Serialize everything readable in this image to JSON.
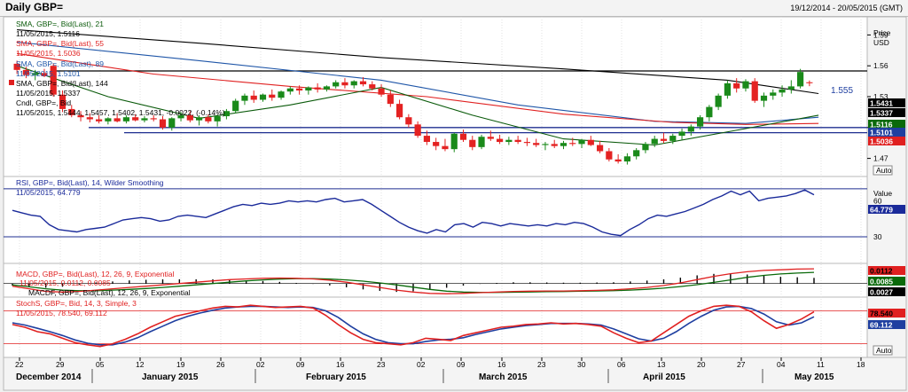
{
  "header": {
    "title": "Daily GBP=",
    "date_range": "19/12/2014 - 20/05/2015 (GMT)"
  },
  "price_panel": {
    "axis_title": [
      "Price",
      "USD"
    ],
    "ticks": [
      "1.59",
      "1.56",
      "1.53",
      "1.5",
      "1.47"
    ],
    "auto_label": "Auto",
    "level_label": "1.555",
    "legend": [
      {
        "label": "SMA, GBP=, Bid(Last), 21",
        "value": "11/05/2015, 1.5116",
        "color": "#0a5a0a"
      },
      {
        "label": "SMA, GBP=, Bid(Last), 55",
        "value": "11/05/2015, 1.5036",
        "color": "#e02020"
      },
      {
        "label": "SMA, GBP=, Bid(Last), 89",
        "value": "11/05/2015, 1.5101",
        "color": "#1f56a8"
      },
      {
        "label": "SMA, GBP=, Bid(Last), 144",
        "value": "11/05/2015, 1.5337",
        "color": "#000000"
      },
      {
        "label": "Cndl, GBP=, Bid",
        "value": "11/05/2015, 1.5444, 1.5457, 1.5402, 1.5431, -0.0022, (-0.14%)",
        "color": "#000000"
      }
    ],
    "value_tags": [
      {
        "text": "1.5431",
        "bg": "#000000",
        "fg": "#ffffff",
        "value": 1.5431
      },
      {
        "text": "1.5337",
        "bg": "#000000",
        "fg": "#ffffff",
        "value": 1.5337
      },
      {
        "text": "1.5116",
        "bg": "#0a6a0a",
        "fg": "#ffffff",
        "value": 1.5116
      },
      {
        "text": "1.5101",
        "bg": "#1f3fa0",
        "fg": "#ffffff",
        "value": 1.5101
      },
      {
        "text": "1.5036",
        "bg": "#e02020",
        "fg": "#ffffff",
        "value": 1.5036
      }
    ]
  },
  "rsi_panel": {
    "legend": [
      "RSI, GBP=, Bid(Last), 14, Wilder Smoothing",
      "11/05/2015, 64.779"
    ],
    "axis_title": "Value",
    "ticks": [
      "60",
      "30"
    ],
    "value_tag": "64.779"
  },
  "macd_panel": {
    "legend": [
      {
        "label": "MACD, GBP=, Bid(Last), 12, 26, 9, Exponential",
        "value": "11/05/2015, 0.0112, 0.0085",
        "color": "#e02020"
      },
      {
        "label": "MACDF, GBP=, Bid(Last), 12, 26, 9, Exponential",
        "value": "",
        "color": "#000000"
      }
    ],
    "value_tags": [
      {
        "text": "0.0112",
        "bg": "#e02020",
        "fg": "#000000"
      },
      {
        "text": "0.0085",
        "bg": "#0a6a0a",
        "fg": "#ffffff"
      },
      {
        "text": "0.0027",
        "bg": "#000000",
        "fg": "#ffffff"
      }
    ]
  },
  "stoch_panel": {
    "legend": [
      "StochS, GBP=, Bid, 14, 3, Simple, 3",
      "11/05/2015, 78.540, 69.112"
    ],
    "value_tags": [
      {
        "text": "78.540",
        "bg": "#e02020",
        "fg": "#000000"
      },
      {
        "text": "69.112",
        "bg": "#1f3fa0",
        "fg": "#ffffff"
      }
    ],
    "auto_label": "Auto"
  },
  "x_axis": {
    "day_ticks": [
      "22",
      "29",
      "05",
      "12",
      "19",
      "26",
      "02",
      "09",
      "16",
      "23",
      "02",
      "09",
      "16",
      "23",
      "30",
      "06",
      "13",
      "20",
      "27",
      "04",
      "11",
      "18"
    ],
    "months": [
      "December 2014",
      "January 2015",
      "February 2015",
      "March 2015",
      "April 2015",
      "May 2015"
    ]
  },
  "colors": {
    "bull": "#1a8a1a",
    "bear": "#e42222",
    "rsi": "#1a2a9a",
    "grid": "#c8c8c8"
  },
  "chart_data": {
    "type": "candlestick",
    "title": "Daily GBP=",
    "ylabel": "Price USD",
    "ylim": [
      1.455,
      1.605
    ],
    "horizontal_levels": [
      1.555,
      1.5,
      1.495
    ],
    "candles": [
      [
        1.562,
        1.565,
        1.552,
        1.556
      ],
      [
        1.556,
        1.559,
        1.548,
        1.551
      ],
      [
        1.551,
        1.556,
        1.546,
        1.553
      ],
      [
        1.553,
        1.557,
        1.549,
        1.55
      ],
      [
        1.56,
        1.562,
        1.53,
        1.532
      ],
      [
        1.532,
        1.536,
        1.515,
        1.518
      ],
      [
        1.518,
        1.522,
        1.51,
        1.512
      ],
      [
        1.512,
        1.516,
        1.506,
        1.51
      ],
      [
        1.51,
        1.514,
        1.505,
        1.508
      ],
      [
        1.508,
        1.512,
        1.504,
        1.506
      ],
      [
        1.506,
        1.51,
        1.503,
        1.509
      ],
      [
        1.509,
        1.514,
        1.505,
        1.506
      ],
      [
        1.506,
        1.512,
        1.504,
        1.51
      ],
      [
        1.51,
        1.513,
        1.506,
        1.507
      ],
      [
        1.507,
        1.511,
        1.505,
        1.509
      ],
      [
        1.509,
        1.512,
        1.506,
        1.508
      ],
      [
        1.508,
        1.511,
        1.498,
        1.5
      ],
      [
        1.5,
        1.51,
        1.497,
        1.509
      ],
      [
        1.509,
        1.515,
        1.506,
        1.512
      ],
      [
        1.512,
        1.516,
        1.505,
        1.507
      ],
      [
        1.507,
        1.512,
        1.502,
        1.51
      ],
      [
        1.51,
        1.513,
        1.504,
        1.506
      ],
      [
        1.506,
        1.512,
        1.501,
        1.511
      ],
      [
        1.511,
        1.518,
        1.508,
        1.516
      ],
      [
        1.516,
        1.528,
        1.514,
        1.526
      ],
      [
        1.526,
        1.533,
        1.522,
        1.531
      ],
      [
        1.531,
        1.536,
        1.524,
        1.527
      ],
      [
        1.527,
        1.533,
        1.525,
        1.532
      ],
      [
        1.532,
        1.537,
        1.526,
        1.529
      ],
      [
        1.529,
        1.536,
        1.527,
        1.535
      ],
      [
        1.535,
        1.54,
        1.532,
        1.538
      ],
      [
        1.538,
        1.541,
        1.532,
        1.536
      ],
      [
        1.536,
        1.54,
        1.532,
        1.539
      ],
      [
        1.539,
        1.543,
        1.534,
        1.537
      ],
      [
        1.537,
        1.541,
        1.535,
        1.54
      ],
      [
        1.54,
        1.546,
        1.538,
        1.544
      ],
      [
        1.544,
        1.548,
        1.538,
        1.541
      ],
      [
        1.541,
        1.546,
        1.538,
        1.545
      ],
      [
        1.545,
        1.549,
        1.54,
        1.542
      ],
      [
        1.542,
        1.545,
        1.536,
        1.538
      ],
      [
        1.538,
        1.542,
        1.53,
        1.532
      ],
      [
        1.532,
        1.536,
        1.52,
        1.523
      ],
      [
        1.523,
        1.527,
        1.508,
        1.51
      ],
      [
        1.51,
        1.513,
        1.5,
        1.503
      ],
      [
        1.503,
        1.506,
        1.49,
        1.492
      ],
      [
        1.492,
        1.497,
        1.483,
        1.486
      ],
      [
        1.486,
        1.49,
        1.478,
        1.482
      ],
      [
        1.482,
        1.489,
        1.477,
        1.479
      ],
      [
        1.479,
        1.495,
        1.476,
        1.494
      ],
      [
        1.494,
        1.498,
        1.486,
        1.488
      ],
      [
        1.488,
        1.492,
        1.478,
        1.481
      ],
      [
        1.481,
        1.493,
        1.479,
        1.491
      ],
      [
        1.491,
        1.497,
        1.487,
        1.489
      ],
      [
        1.489,
        1.493,
        1.484,
        1.486
      ],
      [
        1.486,
        1.491,
        1.483,
        1.488
      ],
      [
        1.488,
        1.492,
        1.484,
        1.486
      ],
      [
        1.486,
        1.49,
        1.482,
        1.485
      ],
      [
        1.485,
        1.489,
        1.481,
        1.483
      ],
      [
        1.483,
        1.486,
        1.478,
        1.484
      ],
      [
        1.484,
        1.488,
        1.48,
        1.482
      ],
      [
        1.482,
        1.487,
        1.479,
        1.485
      ],
      [
        1.485,
        1.49,
        1.482,
        1.484
      ],
      [
        1.484,
        1.489,
        1.48,
        1.488
      ],
      [
        1.488,
        1.492,
        1.482,
        1.483
      ],
      [
        1.483,
        1.487,
        1.475,
        1.477
      ],
      [
        1.477,
        1.48,
        1.467,
        1.469
      ],
      [
        1.469,
        1.474,
        1.465,
        1.467
      ],
      [
        1.467,
        1.475,
        1.464,
        1.472
      ],
      [
        1.472,
        1.48,
        1.469,
        1.478
      ],
      [
        1.478,
        1.486,
        1.475,
        1.484
      ],
      [
        1.484,
        1.492,
        1.481,
        1.489
      ],
      [
        1.489,
        1.495,
        1.485,
        1.487
      ],
      [
        1.487,
        1.494,
        1.484,
        1.492
      ],
      [
        1.492,
        1.499,
        1.488,
        1.496
      ],
      [
        1.496,
        1.503,
        1.492,
        1.501
      ],
      [
        1.501,
        1.512,
        1.498,
        1.51
      ],
      [
        1.51,
        1.522,
        1.506,
        1.52
      ],
      [
        1.52,
        1.533,
        1.517,
        1.531
      ],
      [
        1.531,
        1.546,
        1.528,
        1.543
      ],
      [
        1.543,
        1.548,
        1.534,
        1.538
      ],
      [
        1.538,
        1.547,
        1.535,
        1.545
      ],
      [
        1.545,
        1.548,
        1.524,
        1.526
      ],
      [
        1.526,
        1.534,
        1.52,
        1.531
      ],
      [
        1.531,
        1.537,
        1.527,
        1.534
      ],
      [
        1.534,
        1.541,
        1.53,
        1.537
      ],
      [
        1.537,
        1.546,
        1.533,
        1.54
      ],
      [
        1.54,
        1.557,
        1.538,
        1.554
      ],
      [
        1.544,
        1.5457,
        1.5402,
        1.5431
      ]
    ],
    "series": [
      {
        "name": "SMA 144",
        "color": "#000000",
        "points": [
          [
            0,
            1.595
          ],
          [
            20,
            1.582
          ],
          [
            40,
            1.568
          ],
          [
            60,
            1.557
          ],
          [
            78,
            1.546
          ],
          [
            88,
            1.533
          ]
        ]
      },
      {
        "name": "SMA 89",
        "color": "#1f56a8",
        "points": [
          [
            0,
            1.583
          ],
          [
            20,
            1.565
          ],
          [
            40,
            1.546
          ],
          [
            55,
            1.522
          ],
          [
            70,
            1.506
          ],
          [
            80,
            1.504
          ],
          [
            88,
            1.51
          ]
        ]
      },
      {
        "name": "SMA 55",
        "color": "#e02020",
        "points": [
          [
            0,
            1.572
          ],
          [
            15,
            1.552
          ],
          [
            30,
            1.54
          ],
          [
            45,
            1.53
          ],
          [
            60,
            1.513
          ],
          [
            72,
            1.505
          ],
          [
            80,
            1.503
          ],
          [
            88,
            1.504
          ]
        ]
      },
      {
        "name": "SMA 21",
        "color": "#0a5a0a",
        "points": [
          [
            0,
            1.56
          ],
          [
            10,
            1.53
          ],
          [
            20,
            1.509
          ],
          [
            30,
            1.522
          ],
          [
            40,
            1.539
          ],
          [
            50,
            1.512
          ],
          [
            60,
            1.489
          ],
          [
            70,
            1.483
          ],
          [
            80,
            1.499
          ],
          [
            88,
            1.512
          ]
        ]
      }
    ],
    "rsi": [
      52,
      50,
      48,
      47,
      40,
      36,
      35,
      34,
      36,
      37,
      38,
      41,
      44,
      45,
      46,
      45,
      43,
      44,
      47,
      48,
      47,
      46,
      49,
      52,
      55,
      57,
      56,
      58,
      57,
      58,
      60,
      59,
      60,
      59,
      61,
      62,
      59,
      60,
      61,
      57,
      52,
      47,
      42,
      38,
      35,
      33,
      36,
      34,
      40,
      41,
      38,
      42,
      41,
      39,
      41,
      40,
      39,
      40,
      39,
      41,
      40,
      42,
      41,
      38,
      34,
      32,
      31,
      36,
      40,
      45,
      48,
      47,
      49,
      51,
      54,
      57,
      61,
      64,
      68,
      65,
      68,
      60,
      62,
      63,
      64,
      66,
      69,
      65
    ],
    "macd": [
      -0.002,
      -0.004,
      -0.006,
      -0.0065,
      -0.006,
      -0.005,
      -0.004,
      -0.003,
      -0.002,
      -0.001,
      0.0,
      0.001,
      0.002,
      0.003,
      0.0035,
      0.004,
      0.0042,
      0.004,
      0.0035,
      0.0025,
      0.001,
      -0.001,
      -0.003,
      -0.005,
      -0.0065,
      -0.0075,
      -0.0078,
      -0.0075,
      -0.007,
      -0.0065,
      -0.006,
      -0.0058,
      -0.0057,
      -0.0057,
      -0.0055,
      -0.0052,
      -0.0048,
      -0.004,
      -0.003,
      -0.0015,
      0.0005,
      0.003,
      0.0055,
      0.0075,
      0.009,
      0.01,
      0.0105,
      0.011,
      0.0112
    ],
    "macd_signal": [
      -0.001,
      -0.0025,
      -0.004,
      -0.005,
      -0.0055,
      -0.0055,
      -0.005,
      -0.0045,
      -0.0038,
      -0.003,
      -0.002,
      -0.001,
      0.0,
      0.001,
      0.002,
      0.0028,
      0.0034,
      0.0037,
      0.0037,
      0.0034,
      0.0028,
      0.0018,
      0.0005,
      -0.001,
      -0.0028,
      -0.0045,
      -0.0058,
      -0.0065,
      -0.0068,
      -0.0068,
      -0.0066,
      -0.0064,
      -0.0062,
      -0.0061,
      -0.0059,
      -0.0057,
      -0.0054,
      -0.005,
      -0.0044,
      -0.0035,
      -0.0023,
      -0.0009,
      0.0009,
      0.0028,
      0.0047,
      0.0062,
      0.0073,
      0.008,
      0.0085
    ],
    "stoch_k": [
      55,
      50,
      42,
      38,
      30,
      22,
      18,
      15,
      20,
      28,
      38,
      50,
      60,
      70,
      75,
      80,
      85,
      88,
      87,
      90,
      88,
      86,
      87,
      88,
      85,
      72,
      55,
      40,
      28,
      22,
      20,
      18,
      22,
      30,
      28,
      26,
      35,
      40,
      45,
      50,
      52,
      55,
      56,
      58,
      56,
      57,
      55,
      52,
      40,
      30,
      22,
      25,
      40,
      55,
      70,
      80,
      88,
      90,
      88,
      78,
      62,
      48,
      55,
      65,
      78
    ],
    "stoch_d": [
      58,
      54,
      48,
      42,
      35,
      27,
      21,
      18,
      18,
      23,
      31,
      42,
      52,
      62,
      70,
      76,
      81,
      85,
      87,
      88,
      88,
      87,
      86,
      87,
      86,
      80,
      68,
      52,
      38,
      28,
      22,
      20,
      20,
      24,
      27,
      28,
      31,
      37,
      42,
      47,
      50,
      53,
      55,
      57,
      57,
      57,
      56,
      54,
      47,
      38,
      29,
      25,
      30,
      42,
      57,
      70,
      81,
      87,
      88,
      84,
      74,
      60,
      54,
      58,
      69
    ]
  }
}
